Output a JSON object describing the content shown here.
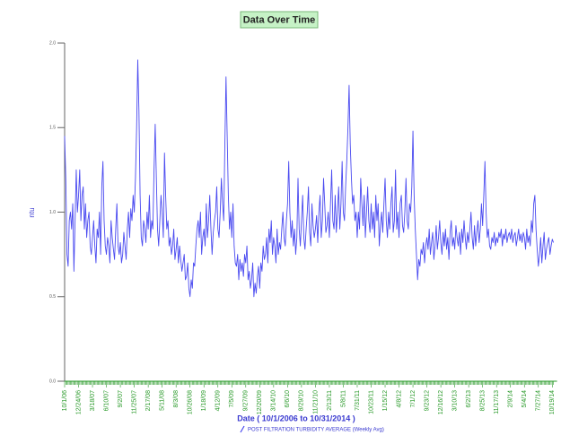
{
  "chart_data": {
    "type": "line",
    "title": "Data Over Time",
    "y_label": "ntu",
    "x_label": "Date ( 10/1/2006 to 10/31/2014 )",
    "categories": [
      "10/1/06",
      null,
      null,
      null,
      null,
      null,
      null,
      null,
      null,
      null,
      null,
      null,
      "12/24/06",
      null,
      null,
      null,
      null,
      null,
      null,
      null,
      null,
      null,
      null,
      null,
      "3/18/07",
      null,
      null,
      null,
      null,
      null,
      null,
      null,
      null,
      null,
      null,
      null,
      "6/10/07",
      null,
      null,
      null,
      null,
      null,
      null,
      null,
      null,
      null,
      null,
      null,
      "9/2/07",
      null,
      null,
      null,
      null,
      null,
      null,
      null,
      null,
      null,
      null,
      null,
      "11/25/07",
      null,
      null,
      null,
      null,
      null,
      null,
      null,
      null,
      null,
      null,
      null,
      "2/17/08",
      null,
      null,
      null,
      null,
      null,
      null,
      null,
      null,
      null,
      null,
      null,
      "5/11/08",
      null,
      null,
      null,
      null,
      null,
      null,
      null,
      null,
      null,
      null,
      null,
      "8/3/08",
      null,
      null,
      null,
      null,
      null,
      null,
      null,
      null,
      null,
      null,
      null,
      "10/26/08",
      null,
      null,
      null,
      null,
      null,
      null,
      null,
      null,
      null,
      null,
      null,
      "1/18/09",
      null,
      null,
      null,
      null,
      null,
      null,
      null,
      null,
      null,
      null,
      null,
      "4/12/09",
      null,
      null,
      null,
      null,
      null,
      null,
      null,
      null,
      null,
      null,
      null,
      "7/5/09",
      null,
      null,
      null,
      null,
      null,
      null,
      null,
      null,
      null,
      null,
      null,
      "9/27/09",
      null,
      null,
      null,
      null,
      null,
      null,
      null,
      null,
      null,
      null,
      null,
      "12/20/09",
      null,
      null,
      null,
      null,
      null,
      null,
      null,
      null,
      null,
      null,
      null,
      "3/14/10",
      null,
      null,
      null,
      null,
      null,
      null,
      null,
      null,
      null,
      null,
      null,
      "6/6/10",
      null,
      null,
      null,
      null,
      null,
      null,
      null,
      null,
      null,
      null,
      null,
      "8/29/10",
      null,
      null,
      null,
      null,
      null,
      null,
      null,
      null,
      null,
      null,
      null,
      "11/21/10",
      null,
      null,
      null,
      null,
      null,
      null,
      null,
      null,
      null,
      null,
      null,
      "2/13/11",
      null,
      null,
      null,
      null,
      null,
      null,
      null,
      null,
      null,
      null,
      null,
      "5/8/11",
      null,
      null,
      null,
      null,
      null,
      null,
      null,
      null,
      null,
      null,
      null,
      "7/31/11",
      null,
      null,
      null,
      null,
      null,
      null,
      null,
      null,
      null,
      null,
      null,
      "10/23/11",
      null,
      null,
      null,
      null,
      null,
      null,
      null,
      null,
      null,
      null,
      null,
      "1/15/12",
      null,
      null,
      null,
      null,
      null,
      null,
      null,
      null,
      null,
      null,
      null,
      "4/8/12",
      null,
      null,
      null,
      null,
      null,
      null,
      null,
      null,
      null,
      null,
      null,
      "7/1/12",
      null,
      null,
      null,
      null,
      null,
      null,
      null,
      null,
      null,
      null,
      null,
      "9/23/12",
      null,
      null,
      null,
      null,
      null,
      null,
      null,
      null,
      null,
      null,
      null,
      "12/16/12",
      null,
      null,
      null,
      null,
      null,
      null,
      null,
      null,
      null,
      null,
      null,
      "3/10/13",
      null,
      null,
      null,
      null,
      null,
      null,
      null,
      null,
      null,
      null,
      null,
      "6/2/13",
      null,
      null,
      null,
      null,
      null,
      null,
      null,
      null,
      null,
      null,
      null,
      "8/25/13",
      null,
      null,
      null,
      null,
      null,
      null,
      null,
      null,
      null,
      null,
      null,
      "11/17/13",
      null,
      null,
      null,
      null,
      null,
      null,
      null,
      null,
      null,
      null,
      null,
      "2/9/14",
      null,
      null,
      null,
      null,
      null,
      null,
      null,
      null,
      null,
      null,
      null,
      "5/4/14",
      null,
      null,
      null,
      null,
      null,
      null,
      null,
      null,
      null,
      null,
      null,
      "7/27/14",
      null,
      null,
      null,
      null,
      null,
      null,
      null,
      null,
      null,
      null,
      null,
      "10/19/14",
      null
    ],
    "series": [
      {
        "name": "POST FILTRATION TURBIDITY AVERAGE (Weekly Avg)",
        "color": "#4a4af0",
        "values": [
          1.45,
          1.2,
          0.75,
          0.68,
          0.95,
          1.0,
          0.9,
          1.05,
          0.65,
          0.95,
          1.25,
          1.0,
          1.1,
          1.25,
          0.95,
          1.1,
          1.15,
          0.9,
          1.05,
          0.85,
          0.95,
          1.0,
          0.8,
          0.75,
          0.85,
          0.95,
          0.8,
          0.7,
          0.9,
          0.85,
          1.0,
          0.75,
          1.15,
          1.3,
          0.95,
          0.8,
          0.75,
          0.85,
          0.8,
          0.7,
          0.95,
          0.85,
          0.78,
          0.72,
          0.9,
          1.05,
          0.8,
          0.75,
          0.82,
          0.7,
          0.75,
          0.88,
          0.8,
          0.72,
          0.9,
          1.0,
          0.85,
          1.02,
          0.95,
          1.1,
          1.0,
          1.2,
          1.5,
          1.9,
          1.6,
          1.1,
          0.85,
          0.8,
          0.95,
          0.9,
          0.82,
          1.0,
          0.9,
          1.1,
          0.85,
          0.95,
          0.9,
          1.25,
          1.52,
          1.2,
          0.9,
          0.8,
          0.95,
          1.1,
          1.0,
          0.85,
          1.35,
          1.1,
          0.9,
          0.95,
          0.8,
          0.85,
          0.75,
          0.8,
          0.9,
          0.72,
          0.78,
          0.85,
          0.7,
          0.8,
          0.72,
          0.65,
          0.7,
          0.75,
          0.6,
          0.62,
          0.7,
          0.55,
          0.5,
          0.6,
          0.55,
          0.7,
          0.68,
          0.8,
          0.9,
          0.95,
          0.85,
          1.0,
          0.75,
          0.85,
          0.9,
          0.8,
          1.05,
          0.85,
          0.95,
          1.1,
          0.9,
          0.75,
          0.88,
          0.95,
          1.0,
          1.15,
          0.9,
          0.85,
          1.0,
          1.2,
          1.05,
          0.95,
          1.4,
          1.8,
          1.45,
          1.1,
          0.9,
          1.0,
          0.85,
          1.05,
          0.8,
          0.7,
          0.68,
          0.75,
          0.6,
          0.72,
          0.65,
          0.7,
          0.62,
          0.75,
          0.7,
          0.8,
          0.6,
          0.65,
          0.55,
          0.6,
          0.7,
          0.5,
          0.58,
          0.52,
          0.62,
          0.68,
          0.55,
          0.7,
          0.65,
          0.8,
          0.72,
          0.75,
          0.85,
          0.7,
          0.9,
          0.82,
          0.95,
          0.75,
          0.85,
          0.8,
          0.7,
          0.9,
          0.75,
          0.82,
          0.78,
          0.9,
          1.0,
          0.85,
          0.8,
          0.95,
          1.05,
          1.3,
          1.0,
          0.85,
          0.95,
          0.8,
          0.9,
          0.75,
          0.85,
          1.2,
          0.9,
          0.8,
          0.95,
          1.1,
          0.85,
          0.78,
          0.9,
          1.0,
          1.15,
          0.88,
          0.8,
          1.05,
          0.92,
          0.85,
          0.9,
          0.98,
          0.82,
          1.0,
          1.1,
          0.85,
          0.95,
          1.2,
          1.05,
          0.88,
          0.92,
          1.0,
          0.85,
          1.05,
          1.25,
          0.95,
          0.9,
          1.1,
          0.88,
          1.0,
          1.15,
          0.9,
          1.05,
          1.3,
          1.0,
          0.95,
          1.15,
          1.3,
          1.5,
          1.75,
          1.4,
          1.2,
          1.05,
          1.1,
          0.95,
          1.0,
          0.85,
          1.0,
          0.9,
          1.2,
          1.05,
          0.92,
          1.1,
          0.85,
          1.0,
          1.15,
          0.95,
          0.88,
          1.05,
          0.9,
          1.0,
          0.85,
          1.1,
          0.95,
          1.05,
          0.8,
          0.92,
          1.0,
          0.88,
          1.05,
          1.2,
          0.95,
          0.85,
          1.0,
          0.9,
          1.05,
          1.15,
          0.88,
          0.95,
          1.25,
          0.9,
          1.0,
          0.85,
          1.05,
          1.1,
          0.92,
          0.88,
          1.0,
          1.2,
          0.95,
          0.9,
          1.05,
          1.0,
          1.15,
          1.48,
          1.1,
          0.9,
          0.75,
          0.6,
          0.72,
          0.68,
          0.78,
          0.75,
          0.82,
          0.7,
          0.8,
          0.85,
          0.78,
          0.9,
          0.75,
          0.82,
          0.88,
          0.72,
          0.8,
          0.92,
          0.78,
          0.85,
          0.95,
          0.82,
          0.75,
          0.88,
          0.8,
          0.9,
          0.78,
          0.85,
          0.72,
          0.88,
          0.95,
          0.8,
          0.85,
          0.78,
          0.92,
          0.85,
          0.8,
          0.88,
          0.75,
          0.9,
          0.82,
          0.95,
          0.85,
          0.78,
          0.88,
          0.82,
          0.9,
          1.0,
          0.85,
          0.78,
          0.92,
          0.8,
          0.88,
          0.95,
          0.82,
          0.9,
          1.05,
          0.92,
          1.1,
          1.3,
          1.0,
          0.85,
          0.9,
          0.8,
          0.78,
          0.85,
          0.82,
          0.88,
          0.8,
          0.85,
          0.82,
          0.88,
          0.85,
          0.9,
          0.8,
          0.87,
          0.84,
          0.9,
          0.82,
          0.86,
          0.88,
          0.84,
          0.9,
          0.82,
          0.86,
          0.88,
          0.8,
          0.85,
          0.9,
          0.83,
          0.87,
          0.82,
          0.88,
          0.85,
          0.78,
          0.9,
          0.82,
          0.86,
          0.8,
          0.95,
          0.88,
          1.05,
          1.1,
          0.9,
          0.78,
          0.68,
          0.75,
          0.85,
          0.7,
          0.8,
          0.88,
          0.72,
          0.78,
          0.82,
          0.85,
          0.75,
          0.8,
          0.84,
          0.82
        ]
      }
    ],
    "ylim": [
      0,
      2
    ],
    "yticks": [
      {
        "value": 0,
        "label": "0.0"
      },
      {
        "value": 0.5,
        "label": "0.5"
      },
      {
        "value": 1,
        "label": "1.0"
      },
      {
        "value": 1.5,
        "label": "1.5"
      },
      {
        "value": 2,
        "label": "2.0"
      }
    ]
  }
}
